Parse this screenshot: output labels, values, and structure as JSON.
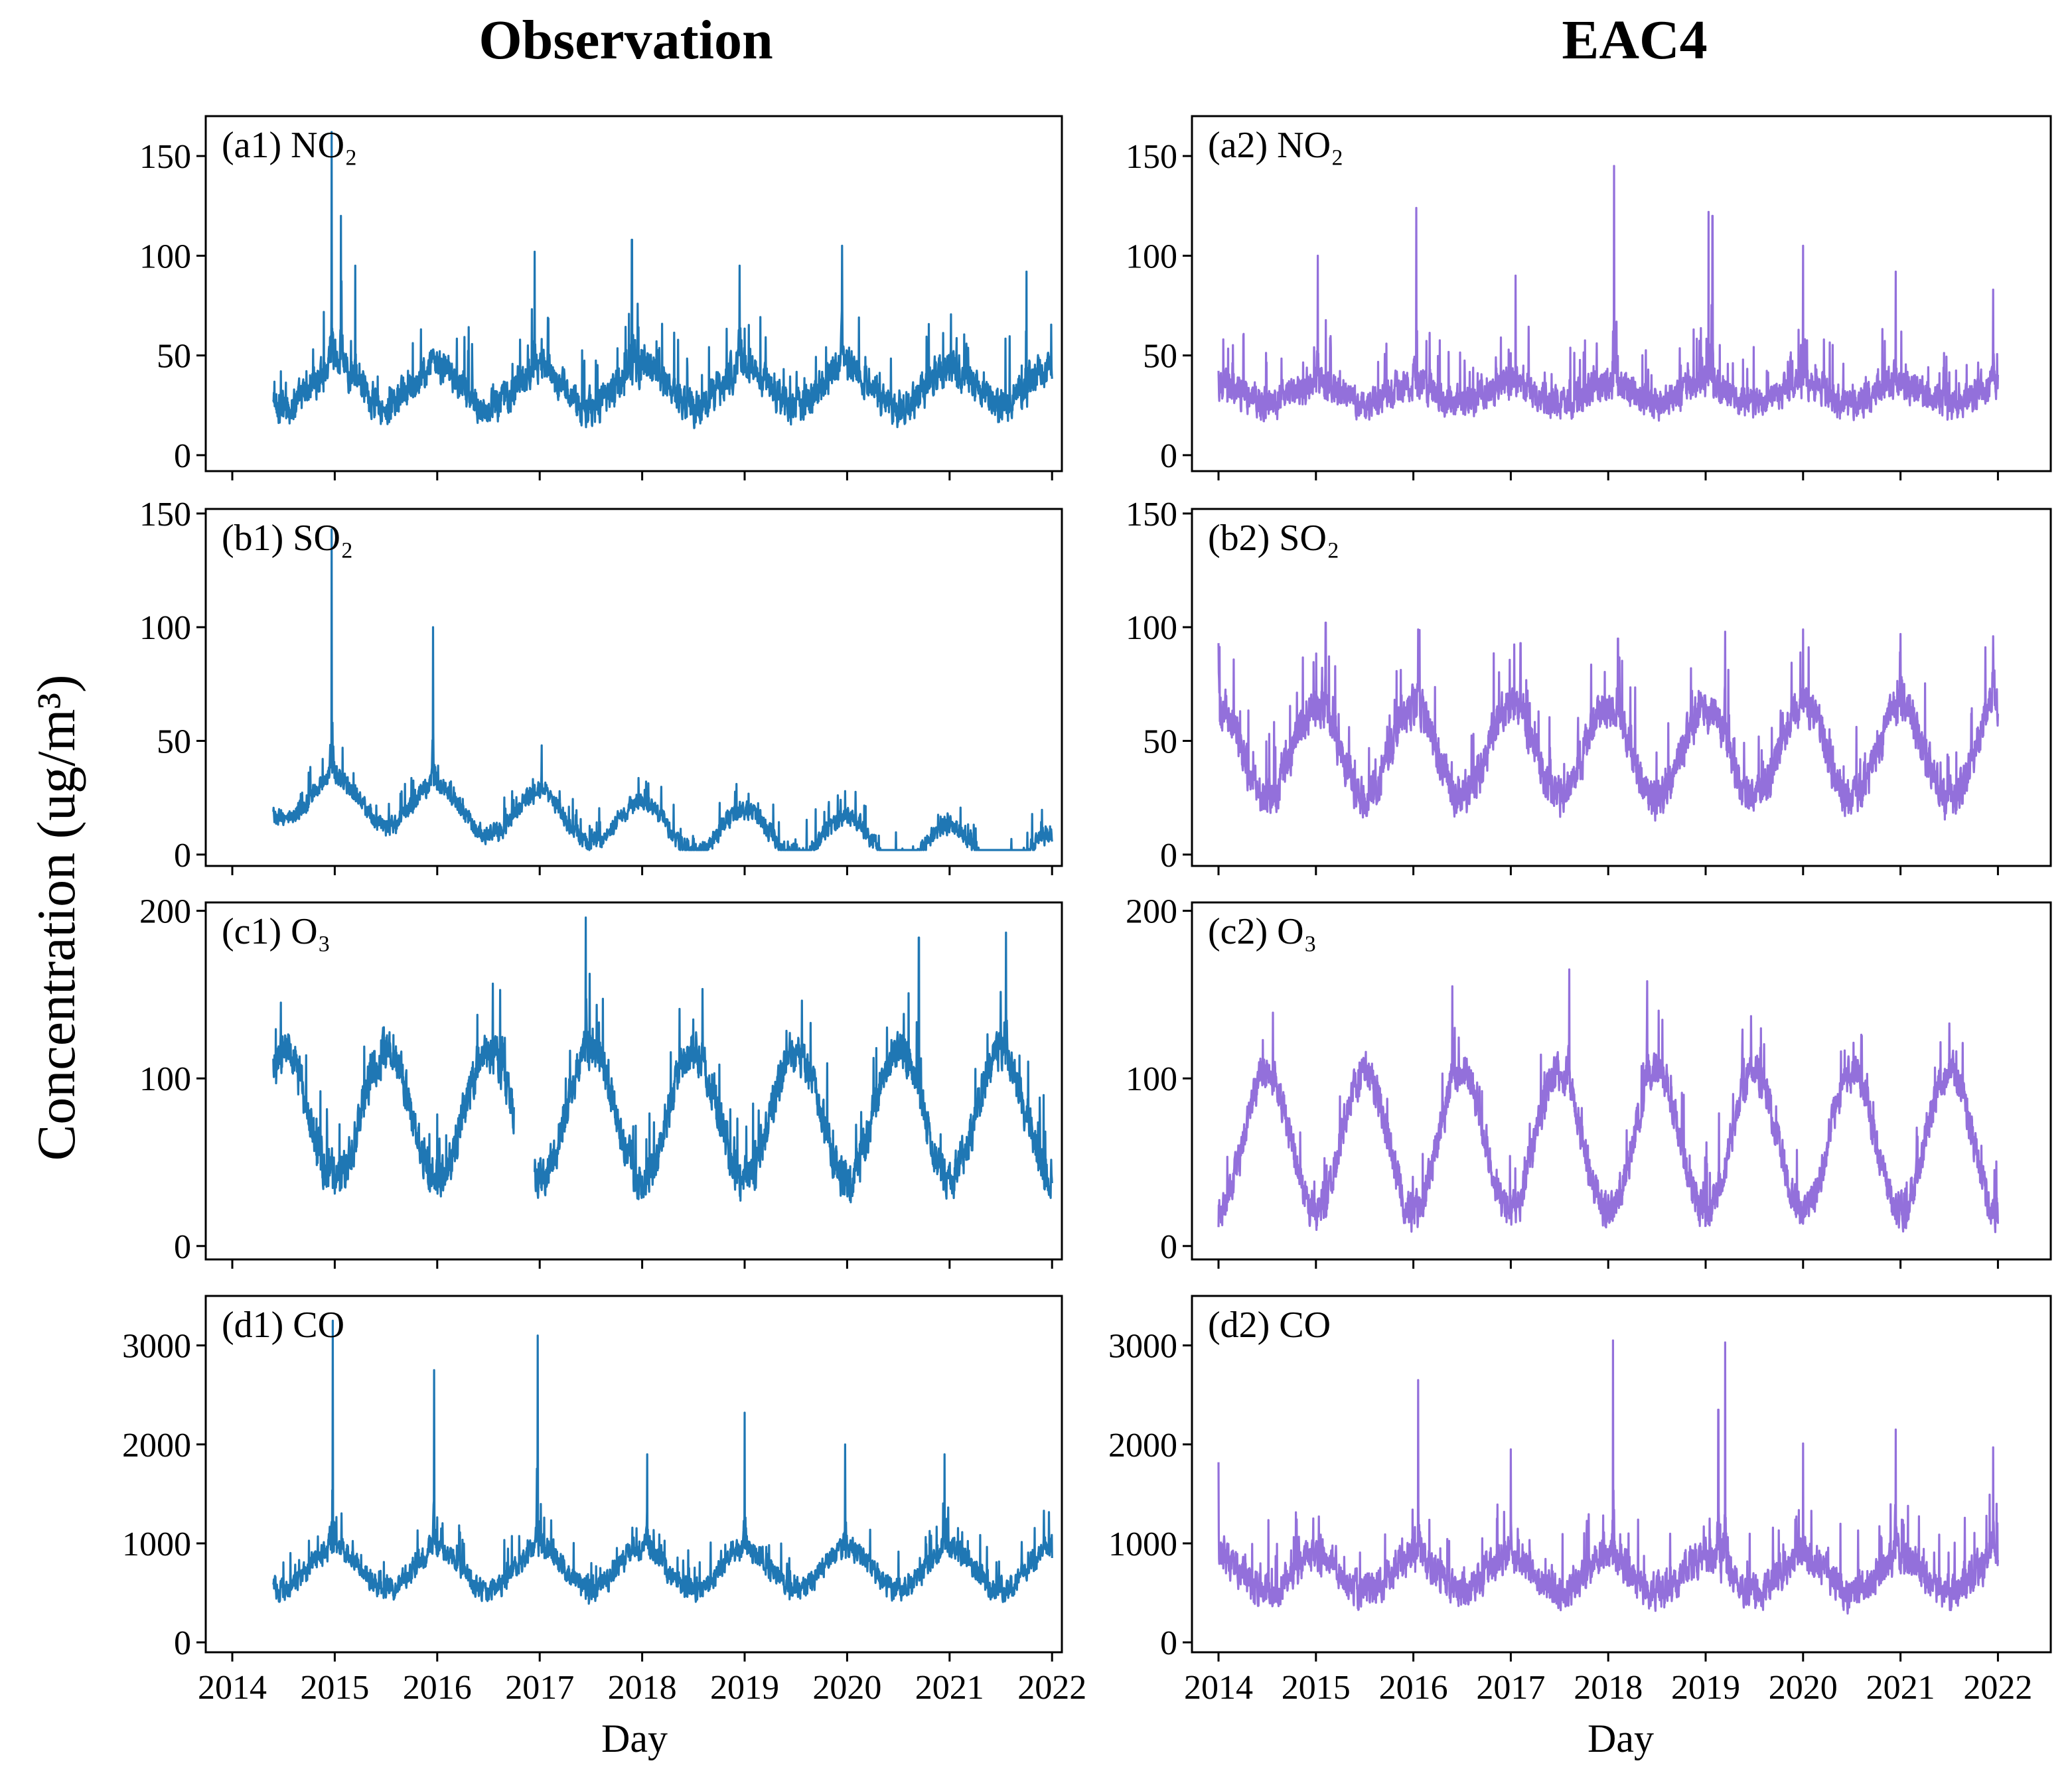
{
  "colors": {
    "observation": "#1f77b4",
    "eac4": "#9370db"
  },
  "chart_data": {
    "type": "line",
    "column_titles": [
      "Observation",
      "EAC4"
    ],
    "ylabel": "Concentration (ug/m³)",
    "xlabel": "Day",
    "x_ticks": [
      "2014",
      "2015",
      "2016",
      "2017",
      "2018",
      "2019",
      "2020",
      "2021",
      "2022"
    ],
    "x_range_observation": [
      2014.4,
      2022.0
    ],
    "x_range_eac4": [
      2014.0,
      2022.0
    ],
    "rows": [
      {
        "pollutant": "NO2",
        "ylim": [
          -8,
          170
        ],
        "y_ticks": [
          0,
          50,
          100,
          150
        ],
        "observation": {
          "panel_label": "(a1) NO₂",
          "mean": 34,
          "amplitude": 10,
          "noise": 13,
          "min_value": 2,
          "peaks": [
            [
              2014.97,
              162
            ],
            [
              2015.06,
              120
            ],
            [
              2015.2,
              95
            ],
            [
              2016.95,
              102
            ],
            [
              2017.9,
              108
            ],
            [
              2018.95,
              95
            ],
            [
              2019.95,
              105
            ],
            [
              2021.75,
              92
            ]
          ],
          "trend": 0
        },
        "eac4": {
          "panel_label": "(a2) NO₂",
          "mean": 31,
          "amplitude": 5,
          "noise": 12,
          "min_value": 5,
          "peaks": [
            [
              2015.02,
              100
            ],
            [
              2016.03,
              124
            ],
            [
              2017.05,
              90
            ],
            [
              2018.06,
              145
            ],
            [
              2019.03,
              122
            ],
            [
              2019.07,
              120
            ],
            [
              2020.0,
              105
            ],
            [
              2020.95,
              92
            ],
            [
              2021.95,
              83
            ]
          ],
          "trend": 0
        }
      },
      {
        "pollutant": "SO2",
        "ylim": [
          -5,
          152
        ],
        "y_ticks": [
          0,
          50,
          100,
          150
        ],
        "observation": {
          "panel_label": "(b1) SO₂",
          "mean": 26,
          "amplitude": 10,
          "noise": 6,
          "min_value": 2,
          "peaks": [
            [
              2014.97,
              143
            ],
            [
              2015.96,
              100
            ],
            [
              2017.02,
              48
            ]
          ],
          "trend": -3.5
        },
        "eac4": {
          "panel_label": "(b2) SO₂",
          "mean": 45,
          "amplitude": 20,
          "noise": 13,
          "min_value": 7,
          "peaks": [
            [
              2014.0,
              93
            ],
            [
              2015.1,
              102
            ],
            [
              2016.05,
              99
            ],
            [
              2017.1,
              93
            ],
            [
              2018.1,
              95
            ],
            [
              2019.2,
              98
            ],
            [
              2020.0,
              99
            ],
            [
              2021.0,
              97
            ],
            [
              2021.95,
              96
            ]
          ],
          "trend": 0
        }
      },
      {
        "pollutant": "O3",
        "ylim": [
          -8,
          205
        ],
        "y_ticks": [
          0,
          100,
          200
        ],
        "observation": {
          "panel_label": "(c1) O₃",
          "mean": 78,
          "amplitude": 38,
          "noise": 18,
          "min_value": 8,
          "peaks": [
            [
              2017.45,
              196
            ],
            [
              2020.7,
              184
            ],
            [
              2021.55,
              187
            ]
          ],
          "trend": 0,
          "gap": [
            2016.75,
            2016.95
          ]
        },
        "eac4": {
          "panel_label": "(c2) O₃",
          "mean": 62,
          "amplitude": 42,
          "noise": 16,
          "min_value": 3,
          "peaks": [
            [
              2017.6,
              165
            ],
            [
              2018.4,
              158
            ],
            [
              2016.4,
              155
            ]
          ],
          "trend": 0
        }
      },
      {
        "pollutant": "CO",
        "ylim": [
          -100,
          3500
        ],
        "y_ticks": [
          0,
          1000,
          2000,
          3000
        ],
        "observation": {
          "panel_label": "(d1) CO",
          "mean": 740,
          "amplitude": 210,
          "noise": 170,
          "min_value": 250,
          "peaks": [
            [
              2014.98,
              3250
            ],
            [
              2015.97,
              2750
            ],
            [
              2016.98,
              3100
            ],
            [
              2018.05,
              1900
            ],
            [
              2019.0,
              2320
            ],
            [
              2019.98,
              2000
            ],
            [
              2020.95,
              1900
            ],
            [
              2021.92,
              1330
            ]
          ],
          "trend": 0
        },
        "eac4": {
          "panel_label": "(d2) CO",
          "mean": 690,
          "amplitude": 180,
          "noise": 260,
          "min_value": 130,
          "peaks": [
            [
              2014.0,
              1820
            ],
            [
              2016.05,
              2650
            ],
            [
              2017.0,
              1950
            ],
            [
              2018.05,
              3050
            ],
            [
              2019.2,
              3030
            ],
            [
              2019.13,
              2350
            ],
            [
              2020.0,
              2010
            ],
            [
              2020.95,
              2150
            ],
            [
              2021.95,
              1970
            ]
          ],
          "trend": 0
        }
      }
    ]
  }
}
